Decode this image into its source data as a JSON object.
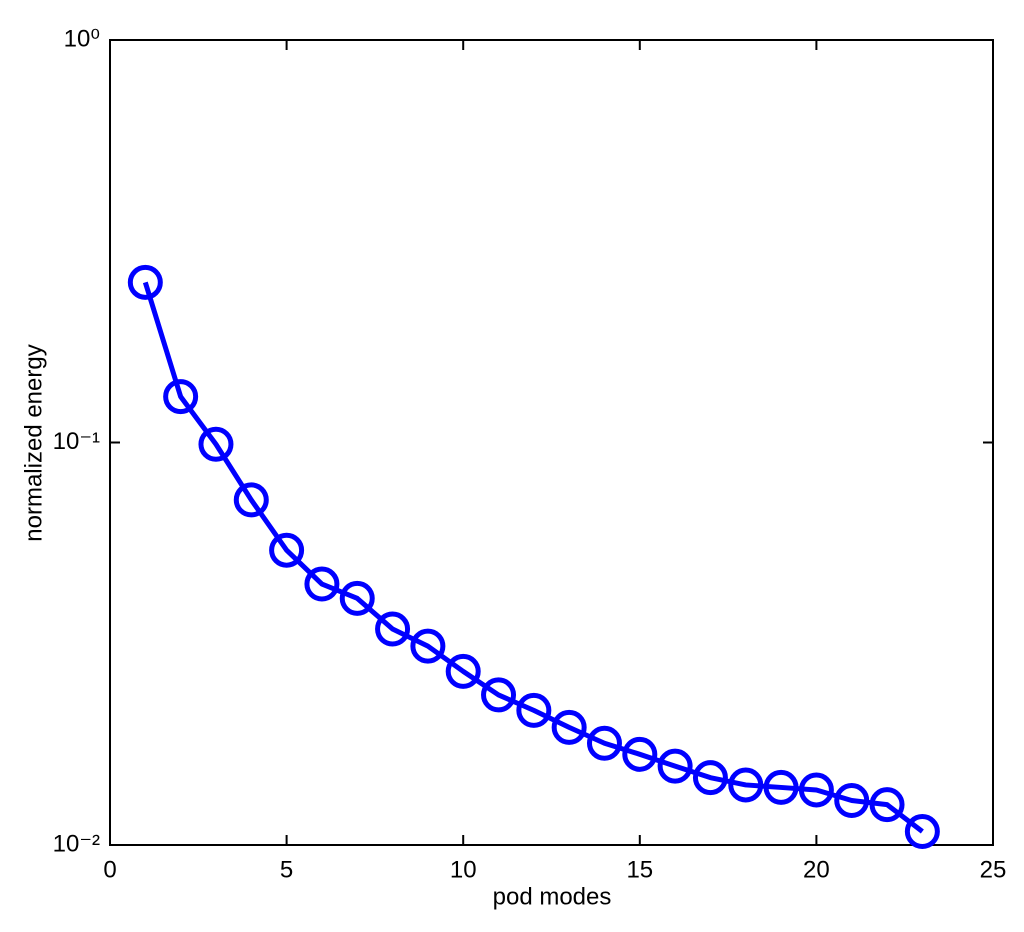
{
  "chart_data": {
    "type": "line",
    "xlabel": "pod modes",
    "ylabel": "normalized energy",
    "x": [
      1,
      2,
      3,
      4,
      5,
      6,
      7,
      8,
      9,
      10,
      11,
      12,
      13,
      14,
      15,
      16,
      17,
      18,
      19,
      20,
      21,
      22,
      23
    ],
    "values": [
      0.25,
      0.13,
      0.099,
      0.072,
      0.054,
      0.0445,
      0.041,
      0.0344,
      0.0312,
      0.027,
      0.0236,
      0.0216,
      0.0196,
      0.0179,
      0.0168,
      0.0157,
      0.0147,
      0.0141,
      0.0139,
      0.0137,
      0.0129,
      0.0126,
      0.0108
    ],
    "color": "#0000ff",
    "marker": "circle",
    "xlim": [
      0,
      25
    ],
    "xticks": [
      0,
      5,
      10,
      15,
      20,
      25
    ],
    "ylim": [
      0.01,
      1
    ],
    "log_y": true,
    "yticks": [
      {
        "value": 0.01,
        "label": "10⁻²"
      },
      {
        "value": 0.1,
        "label": "10⁻¹"
      },
      {
        "value": 1,
        "label": "10⁰"
      }
    ],
    "grid": false
  }
}
